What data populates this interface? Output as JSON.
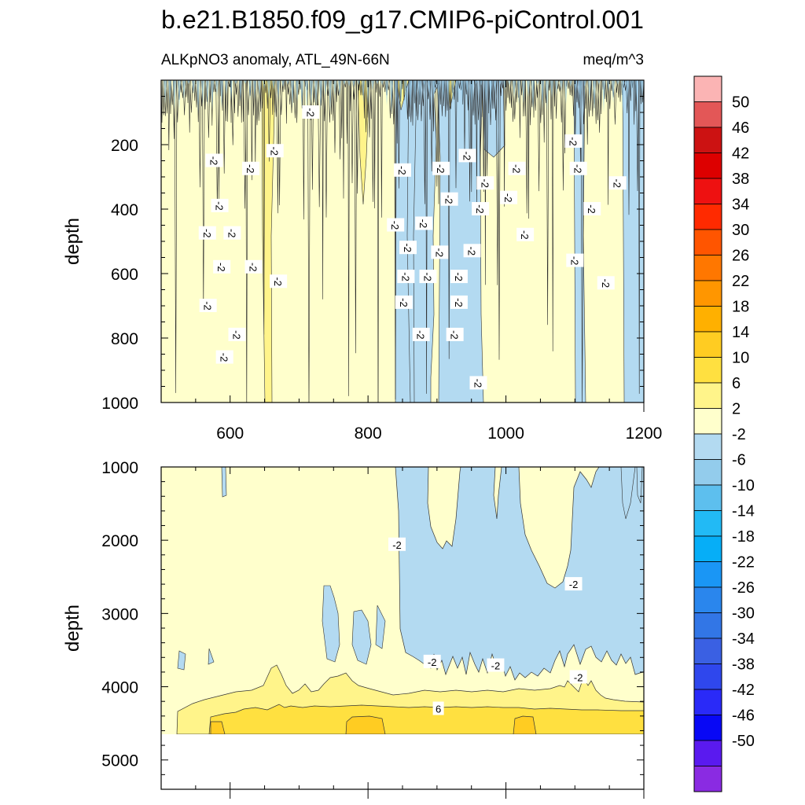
{
  "chart_data": {
    "type": "contour",
    "title": "b.e21.B1850.f09_g17.CMIP6-piControl.001",
    "subtitle_left": "ALKpNO3 anomaly, ATL_49N-66N",
    "subtitle_right": "meq/m^3",
    "xlabel": "",
    "ylabel": "depth",
    "xlim": [
      500,
      1200
    ],
    "x_ticks": [
      600,
      800,
      1000,
      1200
    ],
    "x_tick_labels": [
      "600",
      "800",
      "1000",
      "1200"
    ],
    "panels": [
      {
        "name": "upper",
        "ylim": [
          0,
          1000
        ],
        "y_ticks": [
          200,
          400,
          600,
          800,
          1000
        ],
        "y_tick_labels": [
          "200",
          "400",
          "600",
          "800",
          "1000"
        ],
        "ylabel": "depth",
        "regions": [
          {
            "level": "-6 to -2",
            "color": "#b3daf1",
            "x_range": [
              843,
              962
            ],
            "depth_range": [
              0,
              1000
            ]
          },
          {
            "level": "-6 to -2",
            "color": "#b3daf1",
            "x_range": [
              966,
              1008
            ],
            "depth_range": [
              0,
              430
            ]
          },
          {
            "level": "-6 to -2",
            "color": "#b3daf1",
            "x_range": [
              1108,
              1120
            ],
            "depth_range": [
              0,
              1000
            ]
          },
          {
            "level": "-6 to -2",
            "color": "#b3daf1",
            "x_range": [
              1190,
              1200
            ],
            "depth_range": [
              0,
              1000
            ]
          },
          {
            "level": "2 to 6",
            "color": "#fff48a",
            "x_range": [
              640,
              660
            ],
            "depth_range": [
              0,
              1000
            ]
          }
        ],
        "contour_labels": [
          {
            "text": "-2",
            "x": 717,
            "depth": 100
          },
          {
            "text": "-2",
            "x": 577,
            "depth": 250
          },
          {
            "text": "-2",
            "x": 630,
            "depth": 275
          },
          {
            "text": "-2",
            "x": 665,
            "depth": 220
          },
          {
            "text": "-2",
            "x": 585,
            "depth": 390
          },
          {
            "text": "-2",
            "x": 567,
            "depth": 475
          },
          {
            "text": "-2",
            "x": 603,
            "depth": 475
          },
          {
            "text": "-2",
            "x": 588,
            "depth": 580
          },
          {
            "text": "-2",
            "x": 634,
            "depth": 580
          },
          {
            "text": "-2",
            "x": 670,
            "depth": 625
          },
          {
            "text": "-2",
            "x": 568,
            "depth": 700
          },
          {
            "text": "-2",
            "x": 610,
            "depth": 790
          },
          {
            "text": "-2",
            "x": 592,
            "depth": 860
          },
          {
            "text": "-2",
            "x": 850,
            "depth": 280
          },
          {
            "text": "-2",
            "x": 906,
            "depth": 275
          },
          {
            "text": "-2",
            "x": 944,
            "depth": 235
          },
          {
            "text": "-2",
            "x": 970,
            "depth": 320
          },
          {
            "text": "-2",
            "x": 918,
            "depth": 370
          },
          {
            "text": "-2",
            "x": 963,
            "depth": 400
          },
          {
            "text": "-2",
            "x": 881,
            "depth": 445
          },
          {
            "text": "-2",
            "x": 840,
            "depth": 450
          },
          {
            "text": "-2",
            "x": 858,
            "depth": 520
          },
          {
            "text": "-2",
            "x": 904,
            "depth": 535
          },
          {
            "text": "-2",
            "x": 951,
            "depth": 530
          },
          {
            "text": "-2",
            "x": 855,
            "depth": 610
          },
          {
            "text": "-2",
            "x": 887,
            "depth": 610
          },
          {
            "text": "-2",
            "x": 932,
            "depth": 610
          },
          {
            "text": "-2",
            "x": 852,
            "depth": 690
          },
          {
            "text": "-2",
            "x": 932,
            "depth": 690
          },
          {
            "text": "-2",
            "x": 877,
            "depth": 790
          },
          {
            "text": "-2",
            "x": 926,
            "depth": 790
          },
          {
            "text": "-2",
            "x": 960,
            "depth": 940
          },
          {
            "text": "-2",
            "x": 1016,
            "depth": 275
          },
          {
            "text": "-2",
            "x": 1004,
            "depth": 365
          },
          {
            "text": "-2",
            "x": 1028,
            "depth": 480
          },
          {
            "text": "-2",
            "x": 1098,
            "depth": 190
          },
          {
            "text": "-2",
            "x": 1105,
            "depth": 275
          },
          {
            "text": "-2",
            "x": 1162,
            "depth": 320
          },
          {
            "text": "-2",
            "x": 1125,
            "depth": 400
          },
          {
            "text": "-2",
            "x": 1100,
            "depth": 560
          },
          {
            "text": "-2",
            "x": 1145,
            "depth": 630
          }
        ]
      },
      {
        "name": "lower",
        "ylim": [
          1000,
          5400
        ],
        "y_ticks": [
          1000,
          2000,
          3000,
          4000,
          5000
        ],
        "y_tick_labels": [
          "1000",
          "2000",
          "3000",
          "4000",
          "5000"
        ],
        "ylabel": "depth",
        "data_bottom_depth": 4620,
        "contour_labels": [
          {
            "text": "-2",
            "x": 842,
            "depth": 2060
          },
          {
            "text": "-2",
            "x": 1098,
            "depth": 2600
          },
          {
            "text": "-2",
            "x": 893,
            "depth": 3660
          },
          {
            "text": "-2",
            "x": 985,
            "depth": 3710
          },
          {
            "text": "-2",
            "x": 1105,
            "depth": 3870
          },
          {
            "text": "6",
            "x": 902,
            "depth": 4300
          }
        ]
      }
    ],
    "colorbar": {
      "levels": [
        "50",
        "46",
        "42",
        "38",
        "34",
        "30",
        "26",
        "22",
        "18",
        "14",
        "10",
        "6",
        "2",
        "-2",
        "-6",
        "-10",
        "-14",
        "-18",
        "-22",
        "-26",
        "-30",
        "-34",
        "-38",
        "-42",
        "-46",
        "-50"
      ],
      "colors": [
        "#fbb4b4",
        "#e35757",
        "#cc1212",
        "#dd0000",
        "#ee1111",
        "#ff2a00",
        "#ff5500",
        "#ff7700",
        "#ff9600",
        "#ffb000",
        "#ffcc22",
        "#ffe040",
        "#fff48a",
        "#ffffcc",
        "#b3daf1",
        "#93ccec",
        "#5dbfee",
        "#22baf5",
        "#06aef7",
        "#1a96f5",
        "#2a86ed",
        "#3276e6",
        "#3a60e3",
        "#2f47ed",
        "#2a2af8",
        "#0808f5",
        "#5a1aef",
        "#8a2be2"
      ]
    }
  }
}
